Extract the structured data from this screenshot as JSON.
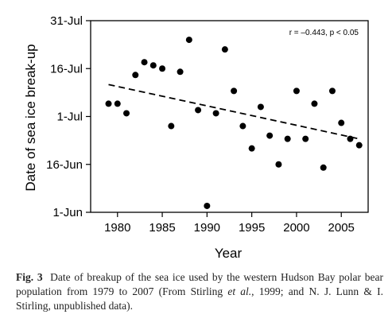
{
  "chart_data": {
    "type": "scatter",
    "xlabel": "Year",
    "ylabel": "Date of sea ice break-up",
    "xlim": [
      1977,
      2008
    ],
    "ylim_day_of_year": [
      152,
      212
    ],
    "x_ticks": [
      1980,
      1985,
      1990,
      1995,
      2000,
      2005
    ],
    "y_ticks": [
      {
        "label": "1-Jun",
        "day": 152
      },
      {
        "label": "16-Jun",
        "day": 167
      },
      {
        "label": "1-Jul",
        "day": 182
      },
      {
        "label": "16-Jul",
        "day": 197
      },
      {
        "label": "31-Jul",
        "day": 212
      }
    ],
    "annotation": "r = –0.443, p < 0.05",
    "points": [
      {
        "x": 1979,
        "y": 186
      },
      {
        "x": 1980,
        "y": 186
      },
      {
        "x": 1981,
        "y": 183
      },
      {
        "x": 1982,
        "y": 195
      },
      {
        "x": 1983,
        "y": 199
      },
      {
        "x": 1984,
        "y": 198
      },
      {
        "x": 1985,
        "y": 197
      },
      {
        "x": 1986,
        "y": 179
      },
      {
        "x": 1987,
        "y": 196
      },
      {
        "x": 1988,
        "y": 206
      },
      {
        "x": 1989,
        "y": 184
      },
      {
        "x": 1990,
        "y": 154
      },
      {
        "x": 1991,
        "y": 183
      },
      {
        "x": 1992,
        "y": 203
      },
      {
        "x": 1993,
        "y": 190
      },
      {
        "x": 1994,
        "y": 179
      },
      {
        "x": 1995,
        "y": 172
      },
      {
        "x": 1996,
        "y": 185
      },
      {
        "x": 1997,
        "y": 176
      },
      {
        "x": 1998,
        "y": 167
      },
      {
        "x": 1999,
        "y": 175
      },
      {
        "x": 2000,
        "y": 190
      },
      {
        "x": 2001,
        "y": 175
      },
      {
        "x": 2002,
        "y": 186
      },
      {
        "x": 2003,
        "y": 166
      },
      {
        "x": 2004,
        "y": 190
      },
      {
        "x": 2005,
        "y": 180
      },
      {
        "x": 2006,
        "y": 175
      },
      {
        "x": 2007,
        "y": 173
      }
    ],
    "trendline": {
      "x": [
        1979,
        2007
      ],
      "y": [
        192,
        175
      ],
      "style": "dashed"
    },
    "grid": false
  },
  "caption": {
    "label": "Fig. 3",
    "text_before_italic": "Date of breakup of the sea ice used by the western Hudson Bay polar bear population from 1979 to 2007 (From Stirling ",
    "italic": "et al.",
    "text_after_italic": ", 1999; and N. J. Lunn & I. Stirling, unpublished data)."
  }
}
